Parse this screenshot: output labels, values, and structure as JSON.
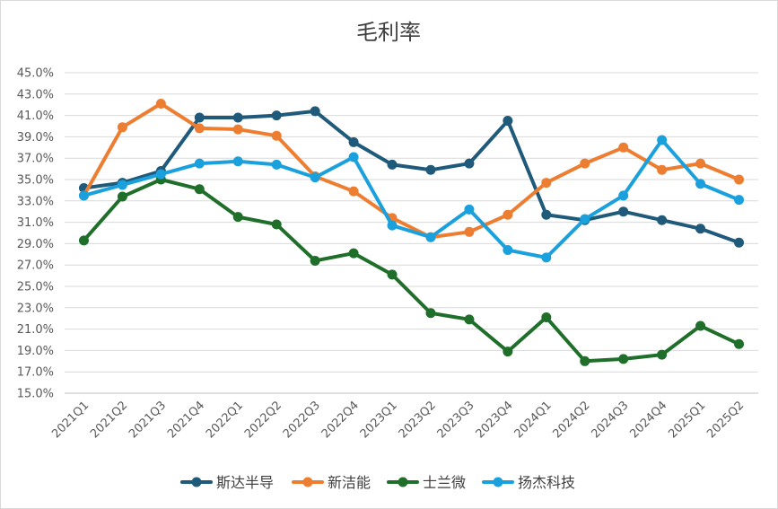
{
  "chart_data": {
    "type": "line",
    "title": "毛利率",
    "xlabel": "",
    "ylabel": "",
    "ylim": [
      15.0,
      45.0
    ],
    "ytick_step": 2.0,
    "y_format": "percent_1dp",
    "grid": true,
    "legend_position": "bottom",
    "categories": [
      "2021Q1",
      "2021Q2",
      "2021Q3",
      "2021Q4",
      "2022Q1",
      "2022Q2",
      "2022Q3",
      "2022Q4",
      "2023Q1",
      "2023Q2",
      "2023Q3",
      "2023Q4",
      "2024Q1",
      "2024Q2",
      "2024Q3",
      "2024Q4",
      "2025Q1",
      "2025Q2"
    ],
    "series": [
      {
        "name": "斯达半导",
        "color": "#1f5a7a",
        "values": [
          34.2,
          34.7,
          35.8,
          40.8,
          40.8,
          41.0,
          41.4,
          38.5,
          36.4,
          35.9,
          36.5,
          40.5,
          31.7,
          31.2,
          32.0,
          31.2,
          30.4,
          29.1
        ]
      },
      {
        "name": "新洁能",
        "color": "#ed7d31",
        "values": [
          33.5,
          39.9,
          42.1,
          39.8,
          39.7,
          39.1,
          35.3,
          33.9,
          31.4,
          29.6,
          30.1,
          31.7,
          34.7,
          36.5,
          38.0,
          35.9,
          36.5,
          35.0
        ]
      },
      {
        "name": "士兰微",
        "color": "#1f6f2a",
        "values": [
          29.3,
          33.4,
          35.0,
          34.1,
          31.5,
          30.8,
          27.4,
          28.1,
          26.1,
          22.5,
          21.9,
          18.9,
          22.1,
          18.0,
          18.2,
          18.6,
          21.3,
          19.6
        ]
      },
      {
        "name": "扬杰科技",
        "color": "#1aa1dd",
        "values": [
          33.5,
          34.5,
          35.5,
          36.5,
          36.7,
          36.4,
          35.2,
          37.1,
          30.7,
          29.6,
          32.2,
          28.4,
          27.7,
          31.3,
          33.5,
          38.7,
          34.6,
          33.1
        ]
      }
    ]
  }
}
